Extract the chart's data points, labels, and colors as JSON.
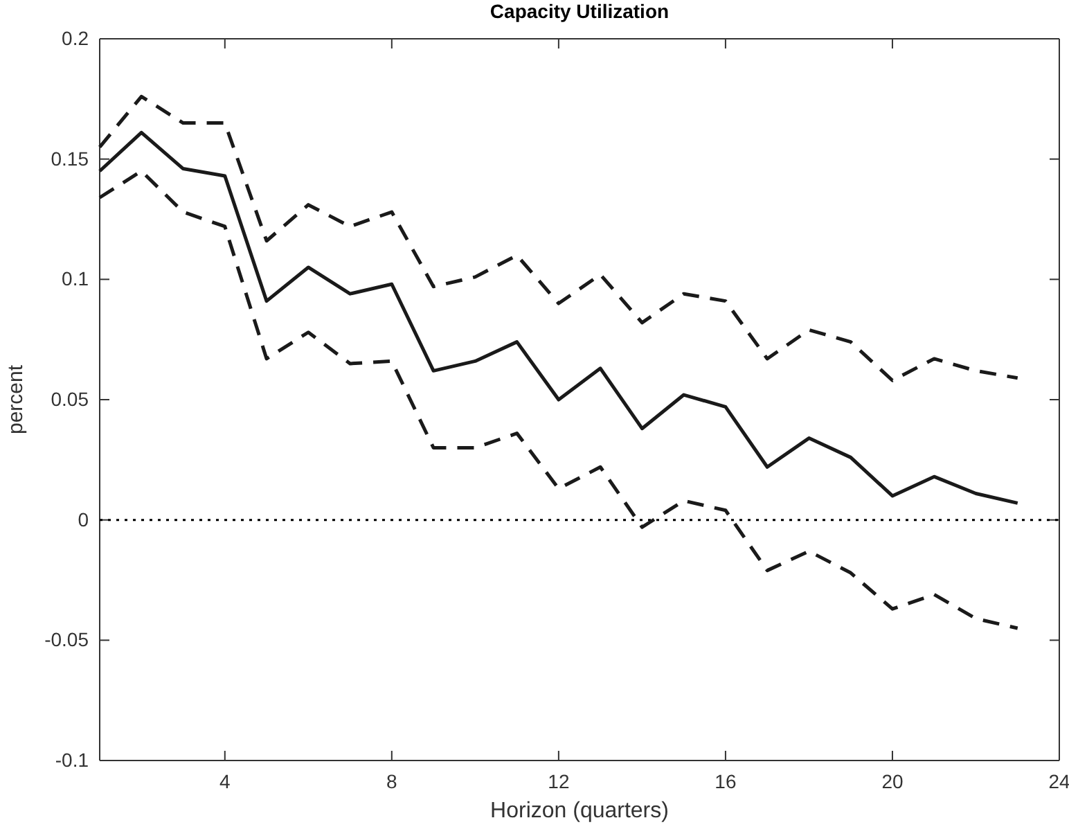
{
  "chart_data": {
    "type": "line",
    "title": "Capacity Utilization",
    "xlabel": "Horizon (quarters)",
    "ylabel": "percent",
    "x": [
      1,
      2,
      3,
      4,
      5,
      6,
      7,
      8,
      9,
      10,
      11,
      12,
      13,
      14,
      15,
      16,
      17,
      18,
      19,
      20,
      21,
      22,
      23
    ],
    "xlim": [
      1,
      24
    ],
    "xticks": [
      4,
      8,
      12,
      16,
      20,
      24
    ],
    "ylim": [
      -0.1,
      0.2
    ],
    "yticks": [
      -0.1,
      -0.05,
      0,
      0.05,
      0.1,
      0.15,
      0.2
    ],
    "series": [
      {
        "color": "#1a1a1a",
        "line_style": "solid",
        "values": [
          0.145,
          0.161,
          0.146,
          0.143,
          0.091,
          0.105,
          0.094,
          0.098,
          0.062,
          0.066,
          0.074,
          0.05,
          0.063,
          0.038,
          0.052,
          0.047,
          0.022,
          0.034,
          0.026,
          0.01,
          0.018,
          0.011,
          0.007
        ]
      },
      {
        "color": "#1a1a1a",
        "line_style": "dashed",
        "values": [
          0.155,
          0.176,
          0.165,
          0.165,
          0.116,
          0.131,
          0.122,
          0.128,
          0.097,
          0.101,
          0.11,
          0.09,
          0.102,
          0.082,
          0.094,
          0.091,
          0.067,
          0.079,
          0.074,
          0.058,
          0.067,
          0.062,
          0.059
        ]
      },
      {
        "color": "#1a1a1a",
        "line_style": "dashed",
        "values": [
          0.134,
          0.145,
          0.128,
          0.122,
          0.067,
          0.078,
          0.065,
          0.066,
          0.03,
          0.03,
          0.036,
          0.013,
          0.022,
          -0.003,
          0.008,
          0.004,
          -0.021,
          -0.013,
          -0.022,
          -0.037,
          -0.031,
          -0.041,
          -0.045
        ]
      }
    ],
    "ref_lines": [
      {
        "axis": "y",
        "value": 0,
        "color": "#000000",
        "line_style": "dotted"
      }
    ],
    "grid": false,
    "marker": "none"
  }
}
